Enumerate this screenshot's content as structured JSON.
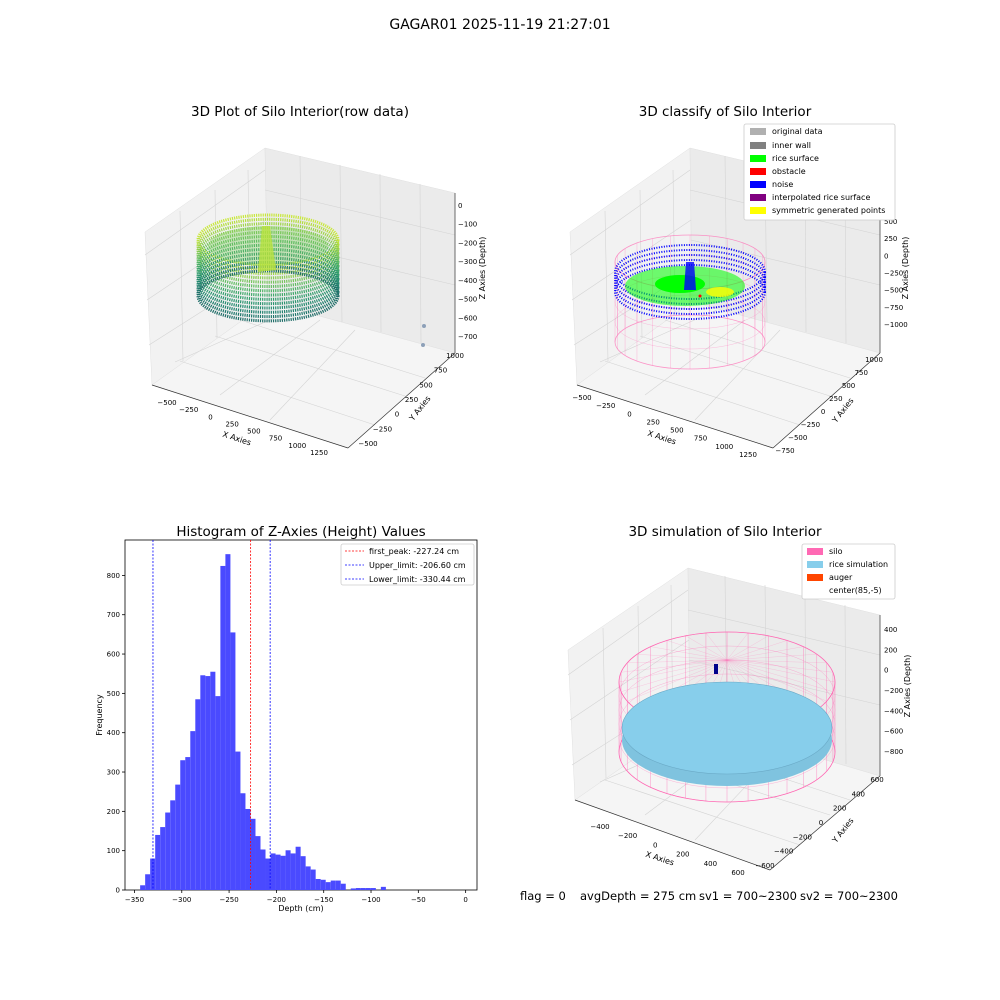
{
  "figure_title": "GAGAR01 2025-11-19 21:27:01",
  "status": {
    "flag": "flag = 0",
    "avg_depth": "avgDepth = 275 cm",
    "sv1": "sv1 = 700~2300",
    "sv2": "sv2 = 700~2300"
  },
  "colors": {
    "original_data": "#b0b0b0",
    "inner_wall": "#808080",
    "rice_surface": "#00ff00",
    "obstacle": "#ff0000",
    "noise": "#0000ff",
    "interpolated_rice_surface": "#800080",
    "symmetric_points": "#ffff00",
    "silo": "#ff69b4",
    "rice_simulation": "#87ceeb",
    "auger": "#ff4500",
    "hist_bar": "#4a4aff"
  },
  "chart_data": [
    {
      "type": "scatter",
      "title": "3D Plot of Silo Interior(row data)",
      "xlabel": "X Axies",
      "ylabel": "Y Axies",
      "zlabel": "Z Axies (Depth)",
      "xticks": [
        "−500",
        "−250",
        "0",
        "250",
        "500",
        "750",
        "1000",
        "1250"
      ],
      "yticks": [
        "−500",
        "−250",
        "0",
        "250",
        "500",
        "750",
        "1000"
      ],
      "zticks": [
        "0",
        "−100",
        "−200",
        "−300",
        "−400",
        "−500",
        "−600",
        "−700"
      ]
    },
    {
      "type": "scatter",
      "title": "3D classify of Silo Interior",
      "xlabel": "X Axies",
      "ylabel": "Y Axies",
      "zlabel": "Z Axies (Depth)",
      "xticks": [
        "−500",
        "−250",
        "0",
        "250",
        "500",
        "750",
        "1000",
        "1250"
      ],
      "yticks": [
        "−750",
        "−500",
        "−250",
        "0",
        "250",
        "500",
        "750",
        "1000"
      ],
      "zticks": [
        "500",
        "250",
        "0",
        "−250",
        "−500",
        "−750",
        "−1000"
      ],
      "legend": [
        "original data",
        "inner wall",
        "rice surface",
        "obstacle",
        "noise",
        "interpolated rice surface",
        "symmetric generated points"
      ]
    },
    {
      "type": "bar",
      "title": "Histogram of Z-Axies (Height) Values",
      "xlabel": "Depth (cm)",
      "ylabel": "Frequency",
      "xlim": [
        -360,
        12
      ],
      "ylim": [
        0,
        890
      ],
      "xticks": [
        -350,
        -300,
        -250,
        -200,
        -150,
        -100,
        -50,
        0
      ],
      "yticks": [
        0,
        100,
        200,
        300,
        400,
        500,
        600,
        700,
        800
      ],
      "bin_start": -344,
      "bin_width": 5.3,
      "values": [
        12,
        40,
        80,
        140,
        160,
        197,
        228,
        268,
        330,
        338,
        404,
        485,
        546,
        544,
        555,
        493,
        824,
        854,
        655,
        352,
        246,
        206,
        181,
        137,
        103,
        80,
        93,
        90,
        87,
        101,
        93,
        110,
        86,
        60,
        52,
        28,
        26,
        20,
        24,
        24,
        16,
        0,
        4,
        5,
        5,
        5,
        5,
        0,
        8
      ],
      "vlines": [
        {
          "label": "first_peak: -227.24 cm",
          "x": -227.24,
          "color": "#ff0000"
        },
        {
          "label": "Upper_limit: -206.60 cm",
          "x": -206.6,
          "color": "#0000ff"
        },
        {
          "label": "Lower_limit: -330.44 cm",
          "x": -330.44,
          "color": "#0000ff"
        }
      ]
    },
    {
      "type": "scatter",
      "title": "3D simulation of Silo Interior",
      "xlabel": "X Axies",
      "ylabel": "Y Axies",
      "zlabel": "Z Axies (Depth)",
      "xticks": [
        "−400",
        "−200",
        "0",
        "200",
        "400",
        "600"
      ],
      "yticks": [
        "−600",
        "−400",
        "−200",
        "0",
        "200",
        "400",
        "600"
      ],
      "zticks": [
        "400",
        "200",
        "0",
        "−200",
        "−400",
        "−600",
        "−800"
      ],
      "legend": [
        "silo",
        "rice simulation",
        "auger",
        "center(85,-5)"
      ]
    }
  ]
}
